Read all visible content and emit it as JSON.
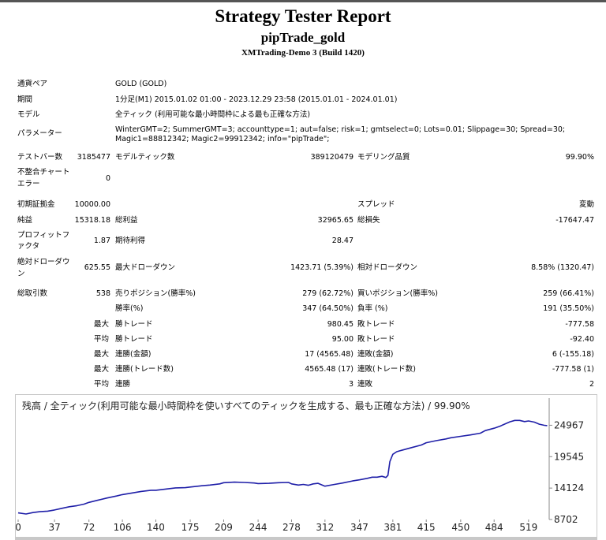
{
  "header": {
    "title": "Strategy Tester Report",
    "ea_name": "pipTrade_gold",
    "server_build": "XMTrading-Demo 3 (Build 1420)"
  },
  "settings": {
    "symbol_label": "通貨ペア",
    "symbol_value": "GOLD (GOLD)",
    "period_label": "期間",
    "period_value": "1分足(M1) 2015.01.02 01:00 - 2023.12.29 23:58 (2015.01.01 - 2024.01.01)",
    "model_label": "モデル",
    "model_value": "全ティック (利用可能な最小時間枠による最も正確な方法)",
    "params_label": "パラメーター",
    "params_line1": "WinterGMT=2; SummerGMT=3; accounttype=1; aut=false; risk=1; gmtselect=0; Lots=0.01; Slippage=30; Spread=30;",
    "params_line2": "Magic1=88812342; Magic2=99912342; info=\"pipTrade\";"
  },
  "stats": {
    "bars_label": "テストバー数",
    "bars_value": "3185477",
    "ticks_label": "モデルティック数",
    "ticks_value": "389120479",
    "quality_label": "モデリング品質",
    "quality_value": "99.90%",
    "mismatch_label_1": "不整合チャート",
    "mismatch_label_2": "エラー",
    "mismatch_value": "0",
    "deposit_label": "初期証拠金",
    "deposit_value": "10000.00",
    "spread_label": "スプレッド",
    "spread_value": "変動",
    "net_label": "純益",
    "net_value": "15318.18",
    "gross_profit_label": "総利益",
    "gross_profit_value": "32965.65",
    "gross_loss_label": "総損失",
    "gross_loss_value": "-17647.47",
    "pf_label_1": "プロフィットフ",
    "pf_label_2": "ァクタ",
    "pf_value": "1.87",
    "expected_label": "期待利得",
    "expected_value": "28.47",
    "abs_dd_label_1": "絶対ドローダウ",
    "abs_dd_label_2": "ン",
    "abs_dd_value": "625.55",
    "max_dd_label": "最大ドローダウン",
    "max_dd_value": "1423.71 (5.39%)",
    "rel_dd_label": "相対ドローダウン",
    "rel_dd_value": "8.58% (1320.47)",
    "trades_label": "総取引数",
    "trades_value": "538",
    "short_label": "売りポジション(勝率%)",
    "short_value": "279 (62.72%)",
    "long_label": "買いポジション(勝率%)",
    "long_value": "259 (66.41%)",
    "win_pct_label": "勝率(%)",
    "win_pct_value": "347 (64.50%)",
    "loss_pct_label": "負率 (%)",
    "loss_pct_value": "191 (35.50%)",
    "r1_prefix": "最大",
    "r1_label_a": "勝トレード",
    "r1_value_a": "980.45",
    "r1_label_b": "敗トレード",
    "r1_value_b": "-777.58",
    "r2_prefix": "平均",
    "r2_label_a": "勝トレード",
    "r2_value_a": "95.00",
    "r2_label_b": "敗トレード",
    "r2_value_b": "-92.40",
    "r3_prefix": "最大",
    "r3_label_a": "連勝(金額)",
    "r3_value_a": "17 (4565.48)",
    "r3_label_b": "連敗(金額)",
    "r3_value_b": "6 (-155.18)",
    "r4_prefix": "最大",
    "r4_label_a": "連勝(トレード数)",
    "r4_value_a": "4565.48 (17)",
    "r4_label_b": "連敗(トレード数)",
    "r4_value_b": "-777.58 (1)",
    "r5_prefix": "平均",
    "r5_label_a": "連勝",
    "r5_value_a": "3",
    "r5_label_b": "連敗",
    "r5_value_b": "2"
  },
  "chart_caption": "残高 / 全ティック(利用可能な最小時間枠を使いすべてのティックを生成する、最も正確な方法) / 99.90%",
  "chart_data": {
    "type": "line",
    "title": "残高 / 全ティック(利用可能な最小時間枠を使いすべてのティックを生成する、最も正確な方法) / 99.90%",
    "xlabel": "",
    "ylabel": "",
    "xlim": [
      0,
      540
    ],
    "ylim": [
      8702,
      27200
    ],
    "x_ticks": [
      0,
      37,
      72,
      106,
      140,
      175,
      209,
      244,
      278,
      312,
      347,
      381,
      415,
      450,
      484,
      519
    ],
    "y_ticks": [
      24967,
      19545,
      14124,
      8702
    ],
    "line_color": "#1f1fa8",
    "series": [
      {
        "x": [
          0,
          8,
          15,
          22,
          30,
          37,
          45,
          52,
          60,
          67,
          72,
          80,
          90,
          100,
          106,
          115,
          125,
          135,
          140,
          150,
          160,
          170,
          175,
          185,
          195,
          205,
          209,
          220,
          230,
          240,
          244,
          255,
          265,
          275,
          278,
          285,
          290,
          295,
          300,
          305,
          312,
          320,
          330,
          340,
          347,
          355,
          360,
          365,
          370,
          374,
          376,
          378,
          381,
          385,
          390,
          400,
          410,
          415,
          425,
          435,
          440,
          450,
          460,
          470,
          475,
          484,
          490,
          500,
          505,
          510,
          515,
          519,
          525,
          530,
          535,
          538
        ],
        "values": [
          9850,
          9650,
          9900,
          10050,
          10150,
          10350,
          10650,
          10900,
          11100,
          11350,
          11650,
          12000,
          12400,
          12750,
          13000,
          13250,
          13550,
          13750,
          13750,
          13950,
          14150,
          14200,
          14300,
          14500,
          14650,
          14850,
          15050,
          15150,
          15100,
          15000,
          14900,
          14950,
          15050,
          15100,
          14850,
          14650,
          14750,
          14600,
          14850,
          14950,
          14450,
          14700,
          15000,
          15350,
          15550,
          15800,
          16000,
          16000,
          16150,
          15950,
          16300,
          18700,
          19950,
          20400,
          20650,
          21100,
          21550,
          21950,
          22300,
          22600,
          22800,
          23050,
          23300,
          23600,
          24050,
          24450,
          24800,
          25550,
          25800,
          25800,
          25600,
          25700,
          25500,
          25150,
          24950,
          24900
        ]
      }
    ]
  }
}
